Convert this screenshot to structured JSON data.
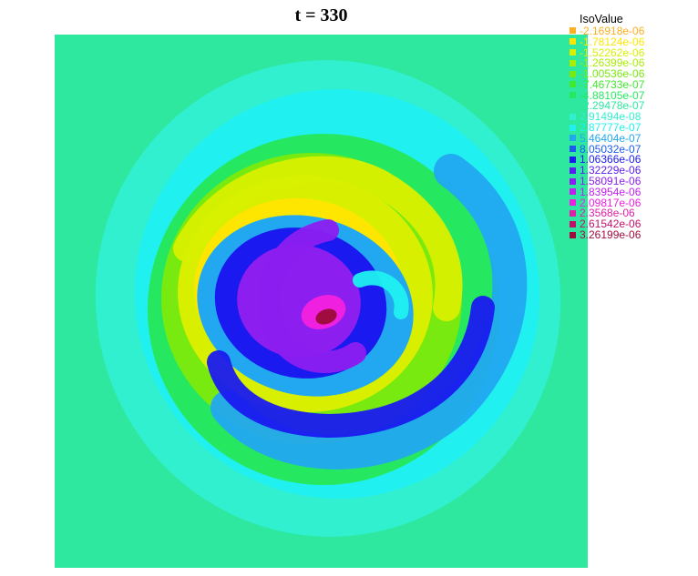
{
  "chart_data": {
    "type": "heatmap",
    "title": "t = 330",
    "legend": {
      "title": "IsoValue",
      "placement": "top-right",
      "entries": [
        {
          "label": "-2.16918e-06",
          "color": "#ffb020"
        },
        {
          "label": "-1.78124e-06",
          "color": "#ffe600"
        },
        {
          "label": "-1.52262e-06",
          "color": "#d8f000"
        },
        {
          "label": "-1.26399e-06",
          "color": "#a8ee00"
        },
        {
          "label": "-1.00536e-06",
          "color": "#78ea10"
        },
        {
          "label": "-7.46733e-07",
          "color": "#40e830"
        },
        {
          "label": "-4.88105e-07",
          "color": "#26e860"
        },
        {
          "label": "-2.29478e-07",
          "color": "#2ee8a0"
        },
        {
          "label": "2.91494e-08",
          "color": "#30f0d0"
        },
        {
          "label": "2.87777e-07",
          "color": "#20f0f0"
        },
        {
          "label": "5.46404e-07",
          "color": "#22a8f0"
        },
        {
          "label": "8.05032e-07",
          "color": "#1a5cf0"
        },
        {
          "label": "1.06366e-06",
          "color": "#1a1af0"
        },
        {
          "label": "1.32229e-06",
          "color": "#5a1ef0"
        },
        {
          "label": "1.58091e-06",
          "color": "#8c1ef0"
        },
        {
          "label": "1.83954e-06",
          "color": "#c21ef0"
        },
        {
          "label": "2.09817e-06",
          "color": "#f020e0"
        },
        {
          "label": "2.3568e-06",
          "color": "#e020a8"
        },
        {
          "label": "2.61542e-06",
          "color": "#c0106c"
        },
        {
          "label": "3.26199e-06",
          "color": "#a00c40"
        }
      ]
    },
    "field": {
      "pattern": "spiral",
      "background_color": "#2ee8a0",
      "bands_outer_to_inner": [
        {
          "level": "2.91494e-08",
          "color": "#30f0d0"
        },
        {
          "level": "2.87777e-07",
          "color": "#20f0f0"
        },
        {
          "level": "-4.88105e-07",
          "color": "#26e860"
        },
        {
          "level": "-1.00536e-06",
          "color": "#78ea10"
        },
        {
          "level": "-1.52262e-06",
          "color": "#d8f000"
        },
        {
          "level": "-1.78124e-06",
          "color": "#ffe600"
        },
        {
          "level": "5.46404e-07",
          "color": "#22a8f0"
        },
        {
          "level": "1.06366e-06",
          "color": "#1a1af0"
        },
        {
          "level": "1.58091e-06",
          "color": "#8c1ef0"
        },
        {
          "level": "2.09817e-06",
          "color": "#f020e0"
        },
        {
          "level": "3.26199e-06",
          "color": "#a00c40"
        }
      ]
    }
  }
}
